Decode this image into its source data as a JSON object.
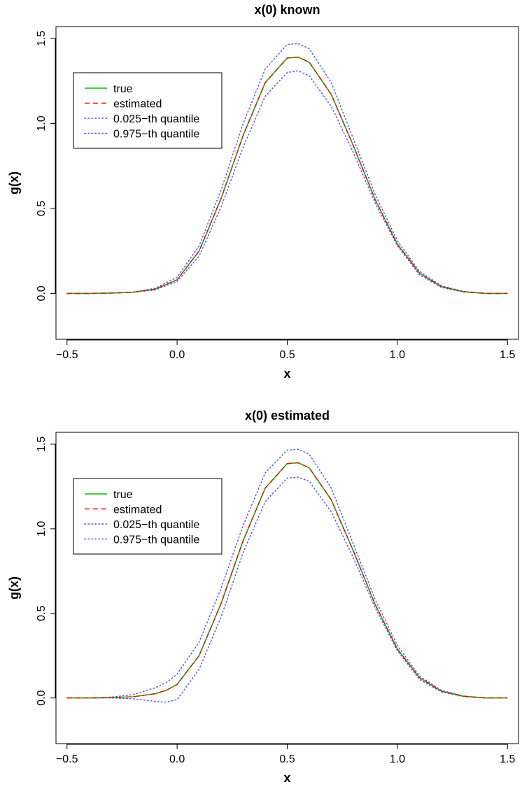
{
  "chart_data": [
    {
      "type": "line",
      "title": "x(0) known",
      "xlabel": "x",
      "ylabel": "g(x)",
      "xlim": [
        -0.55,
        1.55
      ],
      "ylim": [
        -0.27,
        1.57
      ],
      "x_ticks": [
        -0.5,
        0.0,
        0.5,
        1.0,
        1.5
      ],
      "x_tick_labels": [
        "−0.5",
        "0.0",
        "0.5",
        "1.0",
        "1.5"
      ],
      "y_ticks": [
        0.0,
        0.5,
        1.0,
        1.5
      ],
      "y_tick_labels": [
        "0.0",
        "0.5",
        "1.0",
        "1.5"
      ],
      "grid": false,
      "legend": "top-left",
      "x": [
        -0.5,
        -0.4,
        -0.3,
        -0.2,
        -0.1,
        0.0,
        0.1,
        0.2,
        0.3,
        0.4,
        0.5,
        0.55,
        0.6,
        0.7,
        0.8,
        0.9,
        1.0,
        1.1,
        1.2,
        1.3,
        1.4,
        1.5
      ],
      "series": [
        {
          "name": "true",
          "color": "#00bb00",
          "style": "solid",
          "values": [
            0.0,
            0.0,
            0.002,
            0.007,
            0.025,
            0.08,
            0.25,
            0.56,
            0.93,
            1.24,
            1.385,
            1.39,
            1.36,
            1.17,
            0.87,
            0.55,
            0.29,
            0.12,
            0.04,
            0.01,
            0.0,
            0.0
          ]
        },
        {
          "name": "estimated",
          "color": "#ff0000",
          "style": "dashed",
          "values": [
            0.0,
            0.0,
            0.002,
            0.007,
            0.025,
            0.08,
            0.25,
            0.56,
            0.93,
            1.24,
            1.385,
            1.39,
            1.36,
            1.17,
            0.87,
            0.55,
            0.29,
            0.12,
            0.04,
            0.01,
            0.0,
            0.0
          ]
        },
        {
          "name": "0.025−th quantile",
          "color": "#4c4cff",
          "style": "dotted",
          "values": [
            0.0,
            0.0,
            0.002,
            0.006,
            0.02,
            0.07,
            0.22,
            0.51,
            0.86,
            1.16,
            1.3,
            1.31,
            1.28,
            1.1,
            0.83,
            0.53,
            0.28,
            0.11,
            0.035,
            0.008,
            0.0,
            0.0
          ]
        },
        {
          "name": "0.975−th quantile",
          "color": "#4c4cff",
          "style": "dotted",
          "values": [
            0.0,
            0.0,
            0.002,
            0.008,
            0.03,
            0.095,
            0.28,
            0.61,
            1.0,
            1.32,
            1.465,
            1.47,
            1.44,
            1.24,
            0.91,
            0.58,
            0.31,
            0.13,
            0.045,
            0.012,
            0.0,
            0.0
          ]
        }
      ]
    },
    {
      "type": "line",
      "title": "x(0) estimated",
      "xlabel": "x",
      "ylabel": "g(x)",
      "xlim": [
        -0.55,
        1.55
      ],
      "ylim": [
        -0.27,
        1.57
      ],
      "x_ticks": [
        -0.5,
        0.0,
        0.5,
        1.0,
        1.5
      ],
      "x_tick_labels": [
        "−0.5",
        "0.0",
        "0.5",
        "1.0",
        "1.5"
      ],
      "y_ticks": [
        0.0,
        0.5,
        1.0,
        1.5
      ],
      "y_tick_labels": [
        "0.0",
        "0.5",
        "1.0",
        "1.5"
      ],
      "grid": false,
      "legend": "top-left",
      "x": [
        -0.5,
        -0.4,
        -0.3,
        -0.2,
        -0.1,
        -0.05,
        0.0,
        0.1,
        0.2,
        0.3,
        0.4,
        0.5,
        0.55,
        0.6,
        0.7,
        0.8,
        0.9,
        1.0,
        1.1,
        1.2,
        1.3,
        1.4,
        1.5
      ],
      "series": [
        {
          "name": "true",
          "color": "#00bb00",
          "style": "solid",
          "values": [
            0.0,
            0.0,
            0.002,
            0.007,
            0.025,
            0.045,
            0.08,
            0.25,
            0.56,
            0.93,
            1.24,
            1.385,
            1.39,
            1.36,
            1.17,
            0.87,
            0.55,
            0.29,
            0.12,
            0.04,
            0.01,
            0.0,
            0.0
          ]
        },
        {
          "name": "estimated",
          "color": "#ff0000",
          "style": "dashed",
          "values": [
            0.0,
            0.0,
            0.002,
            0.007,
            0.025,
            0.045,
            0.08,
            0.25,
            0.56,
            0.93,
            1.24,
            1.385,
            1.39,
            1.36,
            1.17,
            0.87,
            0.55,
            0.29,
            0.12,
            0.04,
            0.01,
            0.0,
            0.0
          ]
        },
        {
          "name": "0.025−th quantile",
          "color": "#4c4cff",
          "style": "dotted",
          "values": [
            0.0,
            0.0,
            0.0,
            -0.005,
            -0.02,
            -0.025,
            -0.01,
            0.17,
            0.48,
            0.86,
            1.16,
            1.3,
            1.305,
            1.28,
            1.1,
            0.83,
            0.53,
            0.28,
            0.11,
            0.035,
            0.008,
            0.0,
            0.0
          ]
        },
        {
          "name": "0.975−th quantile",
          "color": "#4c4cff",
          "style": "dotted",
          "values": [
            0.0,
            0.0,
            0.005,
            0.02,
            0.06,
            0.09,
            0.14,
            0.33,
            0.65,
            1.02,
            1.33,
            1.465,
            1.47,
            1.44,
            1.24,
            0.91,
            0.58,
            0.31,
            0.13,
            0.045,
            0.012,
            0.0,
            0.0
          ]
        }
      ]
    }
  ]
}
